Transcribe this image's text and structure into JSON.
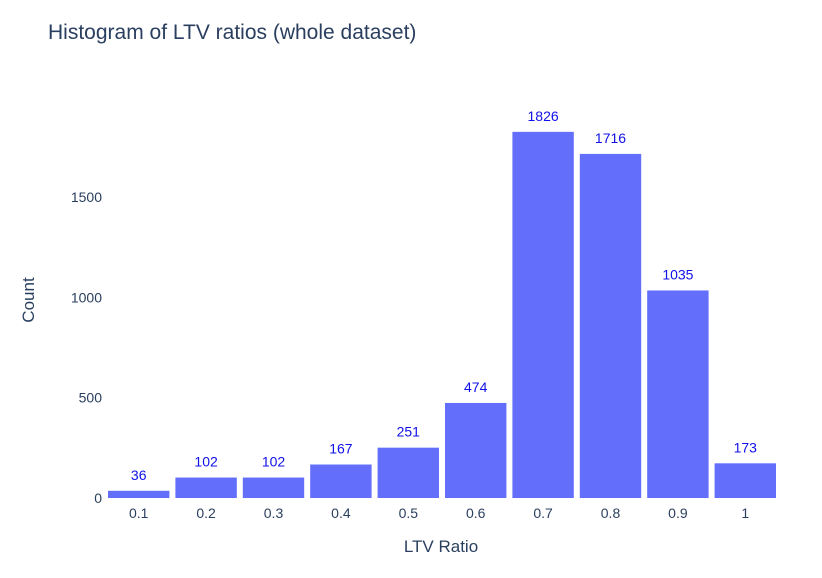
{
  "chart_data": {
    "type": "bar",
    "title": "Histogram of LTV ratios (whole dataset)",
    "xlabel": "LTV Ratio",
    "ylabel": "Count",
    "categories": [
      "0.1",
      "0.2",
      "0.3",
      "0.4",
      "0.5",
      "0.6",
      "0.7",
      "0.8",
      "0.9",
      "1"
    ],
    "values": [
      36,
      102,
      102,
      167,
      251,
      474,
      1826,
      1716,
      1035,
      173
    ],
    "data_labels": [
      "36",
      "102",
      "102",
      "167",
      "251",
      "474",
      "1826",
      "1716",
      "1035",
      "173"
    ],
    "y_ticks": [
      0,
      500,
      1000,
      1500
    ],
    "y_tick_labels": [
      "0",
      "500",
      "1000",
      "1500"
    ],
    "ylim": [
      0,
      1920
    ],
    "grid": false,
    "colors": {
      "bar": "#636efa",
      "label": "#1010e8",
      "text": "#2a3f5f"
    }
  }
}
